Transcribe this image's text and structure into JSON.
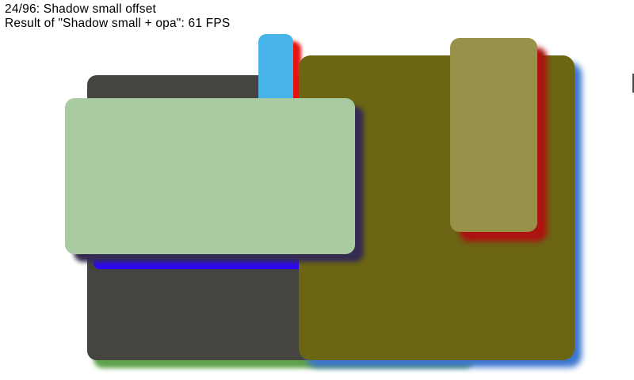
{
  "header": {
    "progress_label": "24/96: Shadow small offset",
    "result_label": "Result of \"Shadow small + opa\": 61 FPS"
  },
  "canvas": {
    "background": "#ffffff",
    "text_color": "#000000"
  },
  "shapes": {
    "gray_card": {
      "fill": "#454440",
      "shadow_color": "#5ea24c"
    },
    "edge_sliver": {
      "fill": "#4a4744"
    },
    "sky_blue_card": {
      "fill": "#47b4e9",
      "shadow_color": "#e41310"
    },
    "bright_blue_card": {
      "fill": "#2d08f0"
    },
    "olive_card": {
      "fill": "#6b6514",
      "shadow_color": "#3b76cf"
    },
    "tan_card": {
      "fill": "#98914a",
      "shadow_color": "#ad1310"
    },
    "sage_green_card": {
      "fill": "#a9cba2",
      "shadow_color": "#342c52"
    }
  }
}
